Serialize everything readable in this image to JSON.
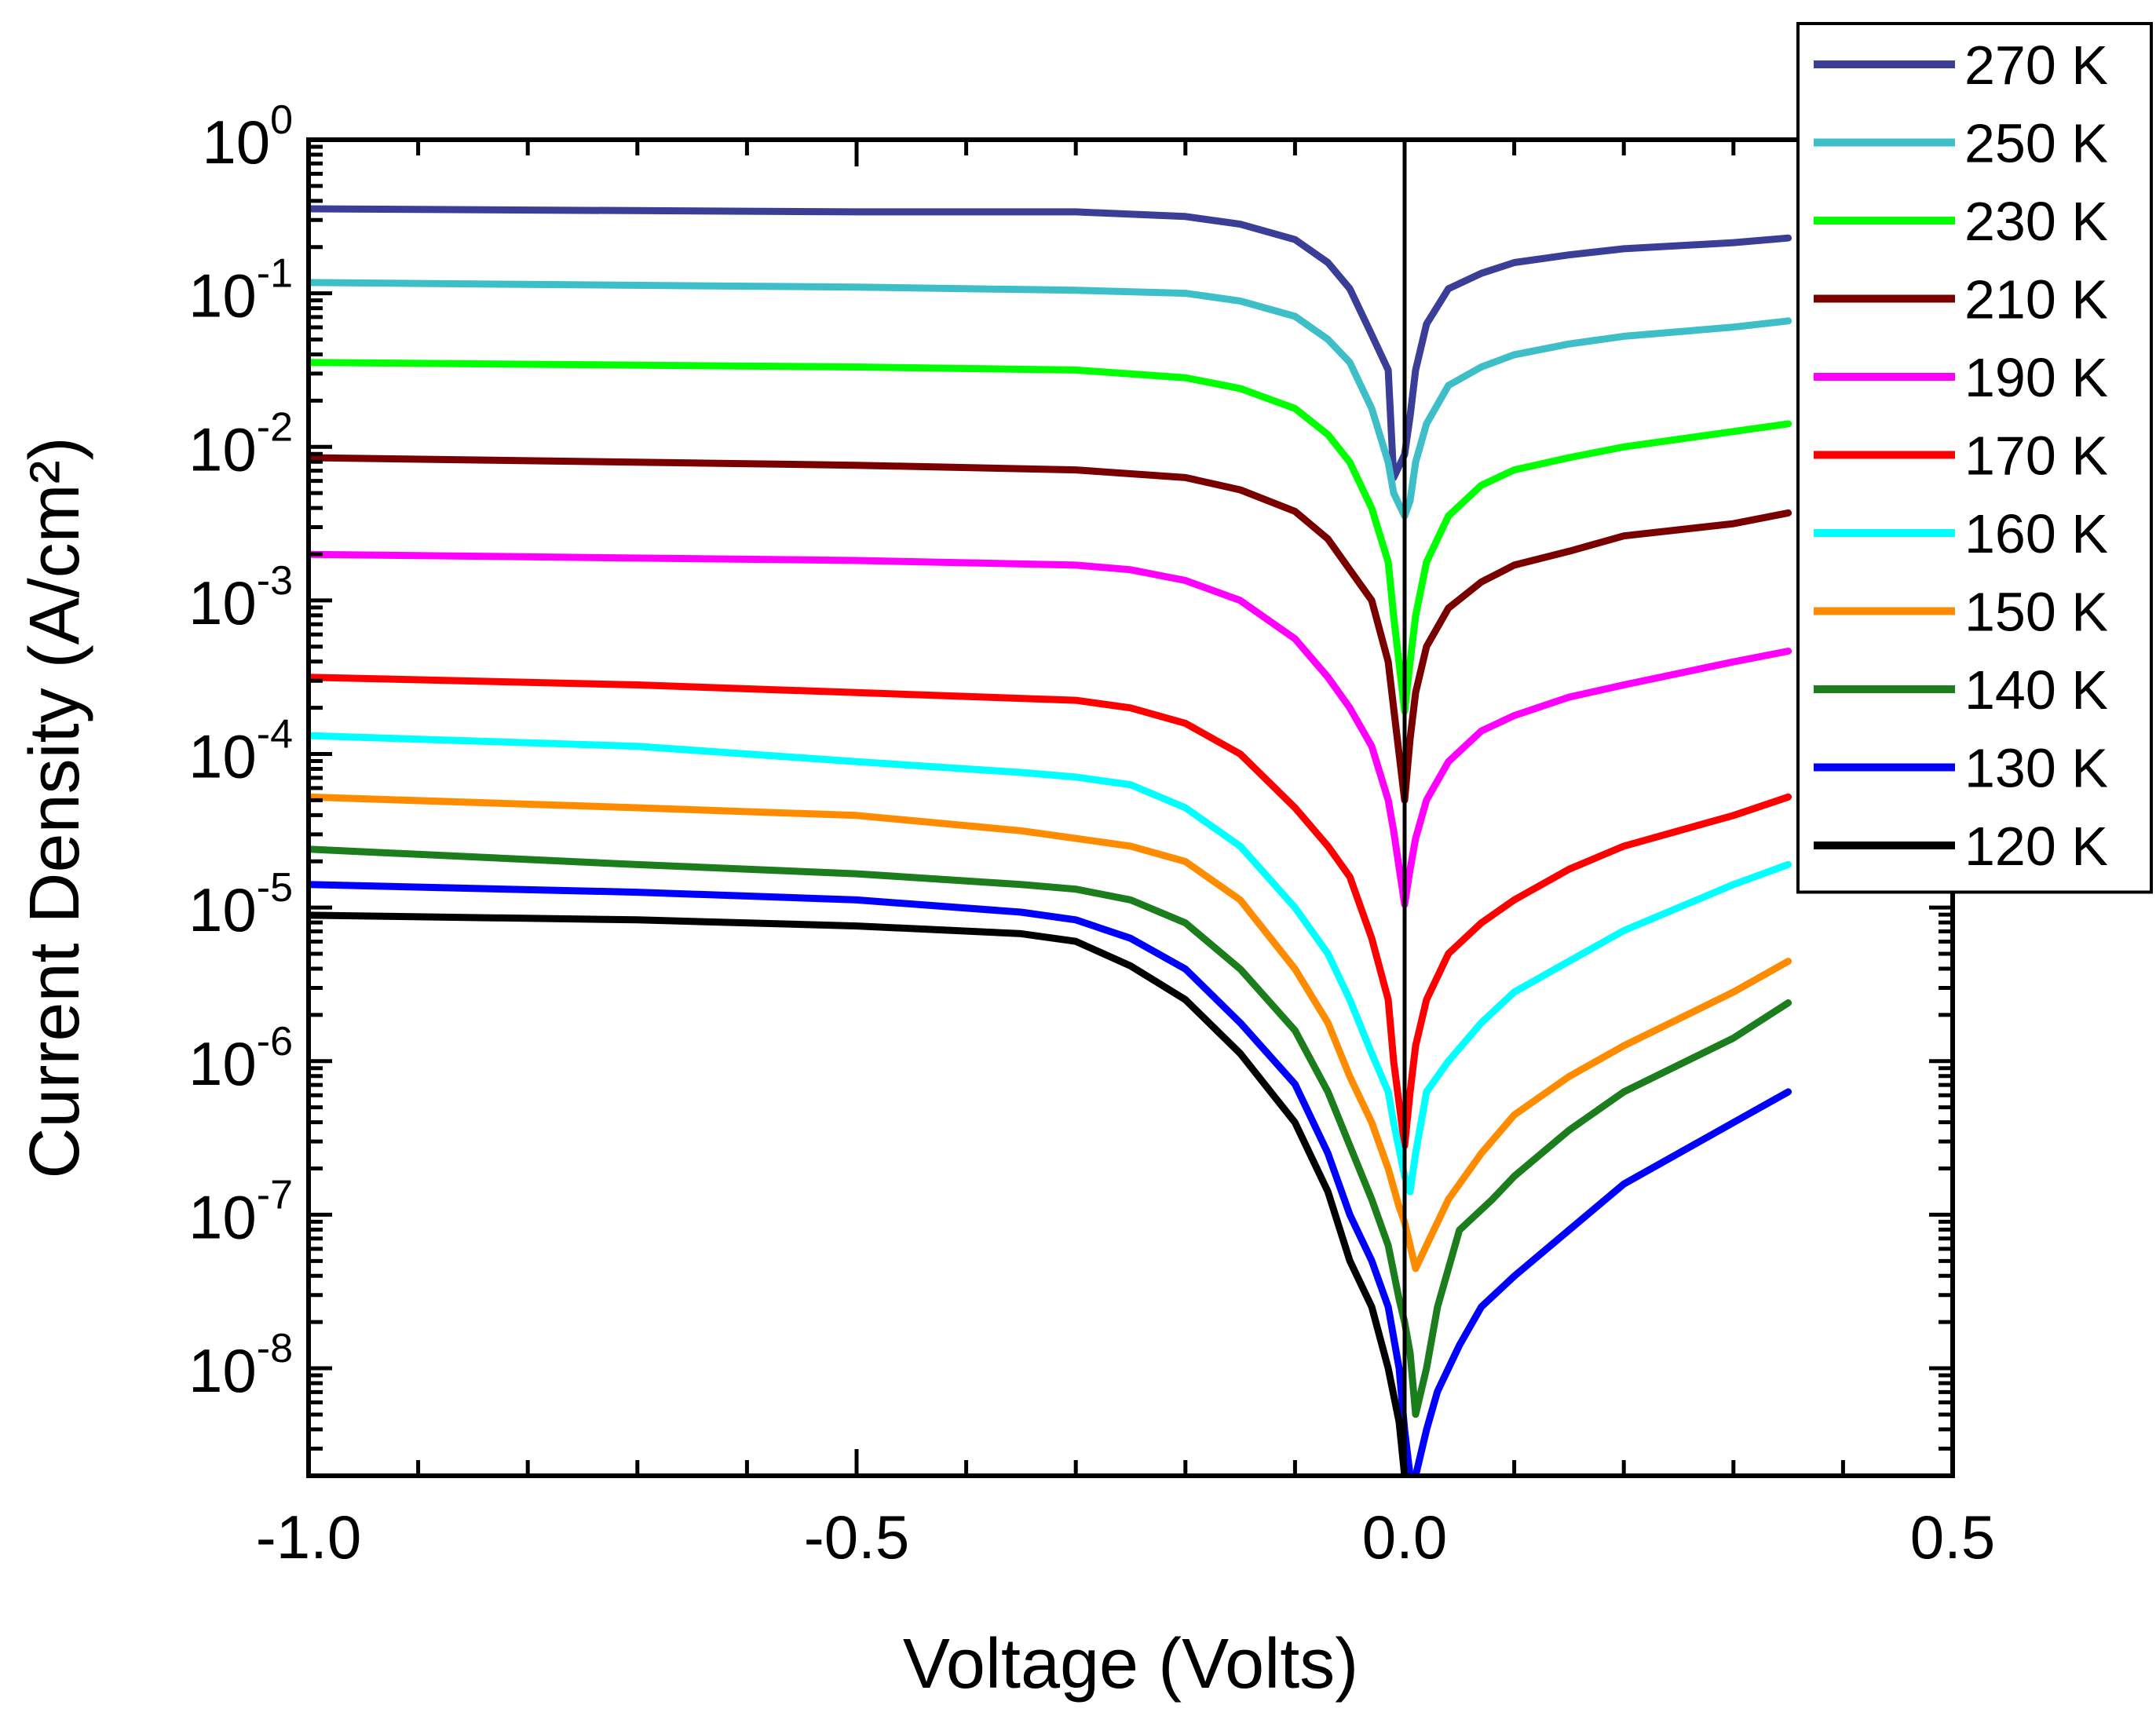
{
  "chart_data": {
    "type": "line",
    "yscale": "log",
    "title": "",
    "xlabel": "Voltage (Volts)",
    "ylabel": "Current Density (A/cm²)",
    "xlim": [
      -1.0,
      0.5
    ],
    "ylim_exp": [
      -8.7,
      0
    ],
    "zero_line_x": 0,
    "x_ticks": [
      {
        "value": -1.0,
        "label": "-1.0"
      },
      {
        "value": -0.5,
        "label": "-0.5"
      },
      {
        "value": 0.0,
        "label": "0.0"
      },
      {
        "value": 0.5,
        "label": "0.5"
      }
    ],
    "y_ticks": [
      {
        "exp": 0,
        "base": "10",
        "sup": "0"
      },
      {
        "exp": -1,
        "base": "10",
        "sup": "-1"
      },
      {
        "exp": -2,
        "base": "10",
        "sup": "-2"
      },
      {
        "exp": -3,
        "base": "10",
        "sup": "-3"
      },
      {
        "exp": -4,
        "base": "10",
        "sup": "-4"
      },
      {
        "exp": -5,
        "base": "10",
        "sup": "-5"
      },
      {
        "exp": -6,
        "base": "10",
        "sup": "-6"
      },
      {
        "exp": -7,
        "base": "10",
        "sup": "-7"
      },
      {
        "exp": -8,
        "base": "10",
        "sup": "-8"
      }
    ],
    "legend": {
      "position": "top-right"
    },
    "series": [
      {
        "name": "270 K",
        "color": "#3a3e96",
        "points": [
          [
            -1.0,
            -0.45
          ],
          [
            -0.5,
            -0.47
          ],
          [
            -0.3,
            -0.47
          ],
          [
            -0.2,
            -0.5
          ],
          [
            -0.15,
            -0.55
          ],
          [
            -0.1,
            -0.65
          ],
          [
            -0.07,
            -0.8
          ],
          [
            -0.05,
            -0.97
          ],
          [
            -0.03,
            -1.27
          ],
          [
            -0.015,
            -1.5
          ],
          [
            -0.01,
            -2.2
          ],
          [
            0.0,
            -2.05
          ],
          [
            0.005,
            -1.8
          ],
          [
            0.01,
            -1.5
          ],
          [
            0.02,
            -1.2
          ],
          [
            0.04,
            -0.97
          ],
          [
            0.07,
            -0.87
          ],
          [
            0.1,
            -0.8
          ],
          [
            0.15,
            -0.75
          ],
          [
            0.2,
            -0.71
          ],
          [
            0.3,
            -0.67
          ],
          [
            0.35,
            -0.64
          ]
        ]
      },
      {
        "name": "250 K",
        "color": "#3ebfc8",
        "points": [
          [
            -1.0,
            -0.93
          ],
          [
            -0.5,
            -0.96
          ],
          [
            -0.3,
            -0.98
          ],
          [
            -0.2,
            -1.0
          ],
          [
            -0.15,
            -1.05
          ],
          [
            -0.1,
            -1.15
          ],
          [
            -0.07,
            -1.3
          ],
          [
            -0.05,
            -1.45
          ],
          [
            -0.03,
            -1.75
          ],
          [
            -0.015,
            -2.1
          ],
          [
            -0.01,
            -2.3
          ],
          [
            0.0,
            -2.45
          ],
          [
            0.005,
            -2.35
          ],
          [
            0.01,
            -2.1
          ],
          [
            0.02,
            -1.85
          ],
          [
            0.04,
            -1.6
          ],
          [
            0.07,
            -1.48
          ],
          [
            0.1,
            -1.4
          ],
          [
            0.15,
            -1.33
          ],
          [
            0.2,
            -1.28
          ],
          [
            0.3,
            -1.22
          ],
          [
            0.35,
            -1.18
          ]
        ]
      },
      {
        "name": "230 K",
        "color": "#00ff00",
        "points": [
          [
            -1.0,
            -1.45
          ],
          [
            -0.5,
            -1.48
          ],
          [
            -0.3,
            -1.5
          ],
          [
            -0.2,
            -1.55
          ],
          [
            -0.15,
            -1.62
          ],
          [
            -0.1,
            -1.75
          ],
          [
            -0.07,
            -1.92
          ],
          [
            -0.05,
            -2.1
          ],
          [
            -0.03,
            -2.4
          ],
          [
            -0.015,
            -2.75
          ],
          [
            -0.01,
            -3.1
          ],
          [
            0.0,
            -3.72
          ],
          [
            0.005,
            -3.4
          ],
          [
            0.01,
            -3.1
          ],
          [
            0.02,
            -2.75
          ],
          [
            0.04,
            -2.45
          ],
          [
            0.07,
            -2.25
          ],
          [
            0.1,
            -2.15
          ],
          [
            0.15,
            -2.07
          ],
          [
            0.2,
            -2.0
          ],
          [
            0.3,
            -1.9
          ],
          [
            0.35,
            -1.85
          ]
        ]
      },
      {
        "name": "210 K",
        "color": "#7a0000",
        "points": [
          [
            -1.0,
            -2.07
          ],
          [
            -0.5,
            -2.12
          ],
          [
            -0.3,
            -2.15
          ],
          [
            -0.2,
            -2.2
          ],
          [
            -0.15,
            -2.28
          ],
          [
            -0.1,
            -2.42
          ],
          [
            -0.07,
            -2.6
          ],
          [
            -0.05,
            -2.8
          ],
          [
            -0.03,
            -3.0
          ],
          [
            -0.015,
            -3.4
          ],
          [
            -0.01,
            -3.7
          ],
          [
            0.0,
            -4.3
          ],
          [
            0.005,
            -3.9
          ],
          [
            0.01,
            -3.6
          ],
          [
            0.02,
            -3.3
          ],
          [
            0.04,
            -3.05
          ],
          [
            0.07,
            -2.88
          ],
          [
            0.1,
            -2.77
          ],
          [
            0.15,
            -2.68
          ],
          [
            0.2,
            -2.58
          ],
          [
            0.3,
            -2.5
          ],
          [
            0.35,
            -2.43
          ]
        ]
      },
      {
        "name": "190 K",
        "color": "#ff00ff",
        "points": [
          [
            -1.0,
            -2.7
          ],
          [
            -0.5,
            -2.74
          ],
          [
            -0.3,
            -2.77
          ],
          [
            -0.25,
            -2.8
          ],
          [
            -0.2,
            -2.87
          ],
          [
            -0.15,
            -3.0
          ],
          [
            -0.1,
            -3.25
          ],
          [
            -0.07,
            -3.5
          ],
          [
            -0.05,
            -3.7
          ],
          [
            -0.03,
            -3.95
          ],
          [
            -0.015,
            -4.3
          ],
          [
            -0.01,
            -4.5
          ],
          [
            0.0,
            -4.98
          ],
          [
            0.005,
            -4.75
          ],
          [
            0.01,
            -4.55
          ],
          [
            0.02,
            -4.3
          ],
          [
            0.04,
            -4.05
          ],
          [
            0.07,
            -3.85
          ],
          [
            0.1,
            -3.75
          ],
          [
            0.15,
            -3.63
          ],
          [
            0.2,
            -3.55
          ],
          [
            0.3,
            -3.4
          ],
          [
            0.35,
            -3.33
          ]
        ]
      },
      {
        "name": "170 K",
        "color": "#ff0000",
        "points": [
          [
            -1.0,
            -3.5
          ],
          [
            -0.7,
            -3.55
          ],
          [
            -0.5,
            -3.6
          ],
          [
            -0.3,
            -3.65
          ],
          [
            -0.25,
            -3.7
          ],
          [
            -0.2,
            -3.8
          ],
          [
            -0.15,
            -4.0
          ],
          [
            -0.1,
            -4.35
          ],
          [
            -0.07,
            -4.6
          ],
          [
            -0.05,
            -4.8
          ],
          [
            -0.03,
            -5.2
          ],
          [
            -0.015,
            -5.6
          ],
          [
            -0.01,
            -6.0
          ],
          [
            0.0,
            -6.55
          ],
          [
            0.005,
            -6.2
          ],
          [
            0.01,
            -5.9
          ],
          [
            0.02,
            -5.6
          ],
          [
            0.04,
            -5.3
          ],
          [
            0.07,
            -5.1
          ],
          [
            0.1,
            -4.95
          ],
          [
            0.15,
            -4.75
          ],
          [
            0.2,
            -4.6
          ],
          [
            0.3,
            -4.4
          ],
          [
            0.35,
            -4.28
          ]
        ]
      },
      {
        "name": "160 K",
        "color": "#00ffff",
        "points": [
          [
            -1.0,
            -3.88
          ],
          [
            -0.7,
            -3.95
          ],
          [
            -0.5,
            -4.05
          ],
          [
            -0.35,
            -4.12
          ],
          [
            -0.3,
            -4.15
          ],
          [
            -0.25,
            -4.2
          ],
          [
            -0.2,
            -4.35
          ],
          [
            -0.15,
            -4.6
          ],
          [
            -0.1,
            -5.0
          ],
          [
            -0.07,
            -5.3
          ],
          [
            -0.05,
            -5.6
          ],
          [
            -0.03,
            -5.95
          ],
          [
            -0.015,
            -6.2
          ],
          [
            -0.01,
            -6.4
          ],
          [
            0.0,
            -6.75
          ],
          [
            0.005,
            -6.85
          ],
          [
            0.01,
            -6.6
          ],
          [
            0.02,
            -6.2
          ],
          [
            0.04,
            -6.0
          ],
          [
            0.07,
            -5.75
          ],
          [
            0.1,
            -5.55
          ],
          [
            0.15,
            -5.35
          ],
          [
            0.2,
            -5.15
          ],
          [
            0.3,
            -4.85
          ],
          [
            0.35,
            -4.72
          ]
        ]
      },
      {
        "name": "150 K",
        "color": "#ff8c00",
        "points": [
          [
            -1.0,
            -4.28
          ],
          [
            -0.7,
            -4.35
          ],
          [
            -0.5,
            -4.4
          ],
          [
            -0.35,
            -4.5
          ],
          [
            -0.3,
            -4.55
          ],
          [
            -0.25,
            -4.6
          ],
          [
            -0.2,
            -4.7
          ],
          [
            -0.15,
            -4.95
          ],
          [
            -0.1,
            -5.4
          ],
          [
            -0.07,
            -5.75
          ],
          [
            -0.05,
            -6.1
          ],
          [
            -0.03,
            -6.4
          ],
          [
            -0.015,
            -6.7
          ],
          [
            -0.005,
            -6.95
          ],
          [
            0.0,
            -7.05
          ],
          [
            0.005,
            -7.2
          ],
          [
            0.01,
            -7.35
          ],
          [
            0.02,
            -7.2
          ],
          [
            0.04,
            -6.9
          ],
          [
            0.07,
            -6.6
          ],
          [
            0.1,
            -6.35
          ],
          [
            0.15,
            -6.1
          ],
          [
            0.2,
            -5.9
          ],
          [
            0.3,
            -5.55
          ],
          [
            0.35,
            -5.35
          ]
        ]
      },
      {
        "name": "140 K",
        "color": "#1b7d1b",
        "points": [
          [
            -1.0,
            -4.62
          ],
          [
            -0.7,
            -4.72
          ],
          [
            -0.5,
            -4.78
          ],
          [
            -0.35,
            -4.85
          ],
          [
            -0.3,
            -4.88
          ],
          [
            -0.25,
            -4.95
          ],
          [
            -0.2,
            -5.1
          ],
          [
            -0.15,
            -5.4
          ],
          [
            -0.1,
            -5.8
          ],
          [
            -0.07,
            -6.2
          ],
          [
            -0.05,
            -6.55
          ],
          [
            -0.03,
            -6.9
          ],
          [
            -0.015,
            -7.2
          ],
          [
            -0.005,
            -7.55
          ],
          [
            0.0,
            -7.7
          ],
          [
            0.005,
            -7.9
          ],
          [
            0.01,
            -8.3
          ],
          [
            0.02,
            -8.0
          ],
          [
            0.03,
            -7.6
          ],
          [
            0.05,
            -7.1
          ],
          [
            0.08,
            -6.9
          ],
          [
            0.1,
            -6.75
          ],
          [
            0.15,
            -6.45
          ],
          [
            0.2,
            -6.2
          ],
          [
            0.3,
            -5.85
          ],
          [
            0.35,
            -5.62
          ]
        ]
      },
      {
        "name": "130 K",
        "color": "#0000ff",
        "points": [
          [
            -1.0,
            -4.85
          ],
          [
            -0.7,
            -4.9
          ],
          [
            -0.5,
            -4.95
          ],
          [
            -0.35,
            -5.03
          ],
          [
            -0.3,
            -5.08
          ],
          [
            -0.25,
            -5.2
          ],
          [
            -0.2,
            -5.4
          ],
          [
            -0.15,
            -5.75
          ],
          [
            -0.1,
            -6.15
          ],
          [
            -0.07,
            -6.6
          ],
          [
            -0.05,
            -7.0
          ],
          [
            -0.03,
            -7.3
          ],
          [
            -0.015,
            -7.6
          ],
          [
            -0.005,
            -8.0
          ],
          [
            0.0,
            -8.4
          ],
          [
            0.005,
            -8.7
          ],
          [
            0.01,
            -8.7
          ],
          [
            0.02,
            -8.4
          ],
          [
            0.03,
            -8.15
          ],
          [
            0.05,
            -7.85
          ],
          [
            0.07,
            -7.6
          ],
          [
            0.1,
            -7.4
          ],
          [
            0.15,
            -7.1
          ],
          [
            0.2,
            -6.8
          ],
          [
            0.3,
            -6.4
          ],
          [
            0.35,
            -6.2
          ]
        ]
      },
      {
        "name": "120 K",
        "color": "#000000",
        "points": [
          [
            -1.0,
            -5.05
          ],
          [
            -0.7,
            -5.08
          ],
          [
            -0.5,
            -5.12
          ],
          [
            -0.35,
            -5.17
          ],
          [
            -0.3,
            -5.22
          ],
          [
            -0.25,
            -5.38
          ],
          [
            -0.2,
            -5.6
          ],
          [
            -0.15,
            -5.95
          ],
          [
            -0.1,
            -6.4
          ],
          [
            -0.07,
            -6.85
          ],
          [
            -0.05,
            -7.3
          ],
          [
            -0.03,
            -7.6
          ],
          [
            -0.015,
            -8.0
          ],
          [
            -0.005,
            -8.35
          ],
          [
            0.0,
            -8.7
          ]
        ]
      }
    ]
  }
}
